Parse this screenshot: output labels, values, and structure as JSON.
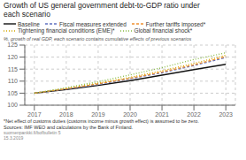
{
  "chart_data": {
    "type": "line",
    "title": "Growth of US general government debt-to-GDP ratio under\neach scenario",
    "ylabel": "%, growth of real GDP, each scenario contains cumulative effects of previous scenarios",
    "x": [
      2017,
      2018,
      2019,
      2020,
      2021,
      2022,
      2023
    ],
    "series": [
      {
        "name": "Baseline",
        "color": "#111111",
        "line_style": "solid",
        "values": [
          105.0,
          106.5,
          108.2,
          110.2,
          112.5,
          114.8,
          117.0
        ]
      },
      {
        "name": "Fiscal measures extended",
        "color": "#6070c0",
        "line_style": "dashed",
        "values": [
          105.0,
          106.7,
          108.7,
          111.0,
          113.5,
          116.5,
          119.8
        ]
      },
      {
        "name": "Further tariffs imposed*",
        "color": "#f09030",
        "line_style": "dashed",
        "values": [
          105.0,
          106.8,
          108.9,
          111.2,
          113.8,
          116.8,
          120.2
        ]
      },
      {
        "name": "Tightening financial conditions (EME)*",
        "color": "#d4a800",
        "line_style": "dotted",
        "values": [
          105.0,
          107.0,
          109.2,
          111.6,
          114.3,
          117.4,
          120.8
        ]
      },
      {
        "name": "Global financial shock*",
        "color": "#88bb44",
        "line_style": "dotted",
        "values": [
          105.0,
          107.3,
          109.8,
          112.6,
          115.6,
          119.0,
          121.8
        ]
      }
    ],
    "xlim": [
      2016.7,
      2023.3
    ],
    "ylim": [
      100,
      125
    ],
    "xticks": [
      2017,
      2018,
      2019,
      2020,
      2021,
      2022,
      2023
    ],
    "yticks": [
      100,
      105,
      110,
      115,
      120,
      125
    ],
    "grid": true,
    "legend": "top",
    "annotations": [
      "*Net effect of customs duties (customs income minus growth effect) is assumed to be zero.\nSources: IMF WEO and calculations by the Bank of Finland.",
      "suomenpankki.fi/bofbulletin 5\n15.3.2019"
    ]
  }
}
